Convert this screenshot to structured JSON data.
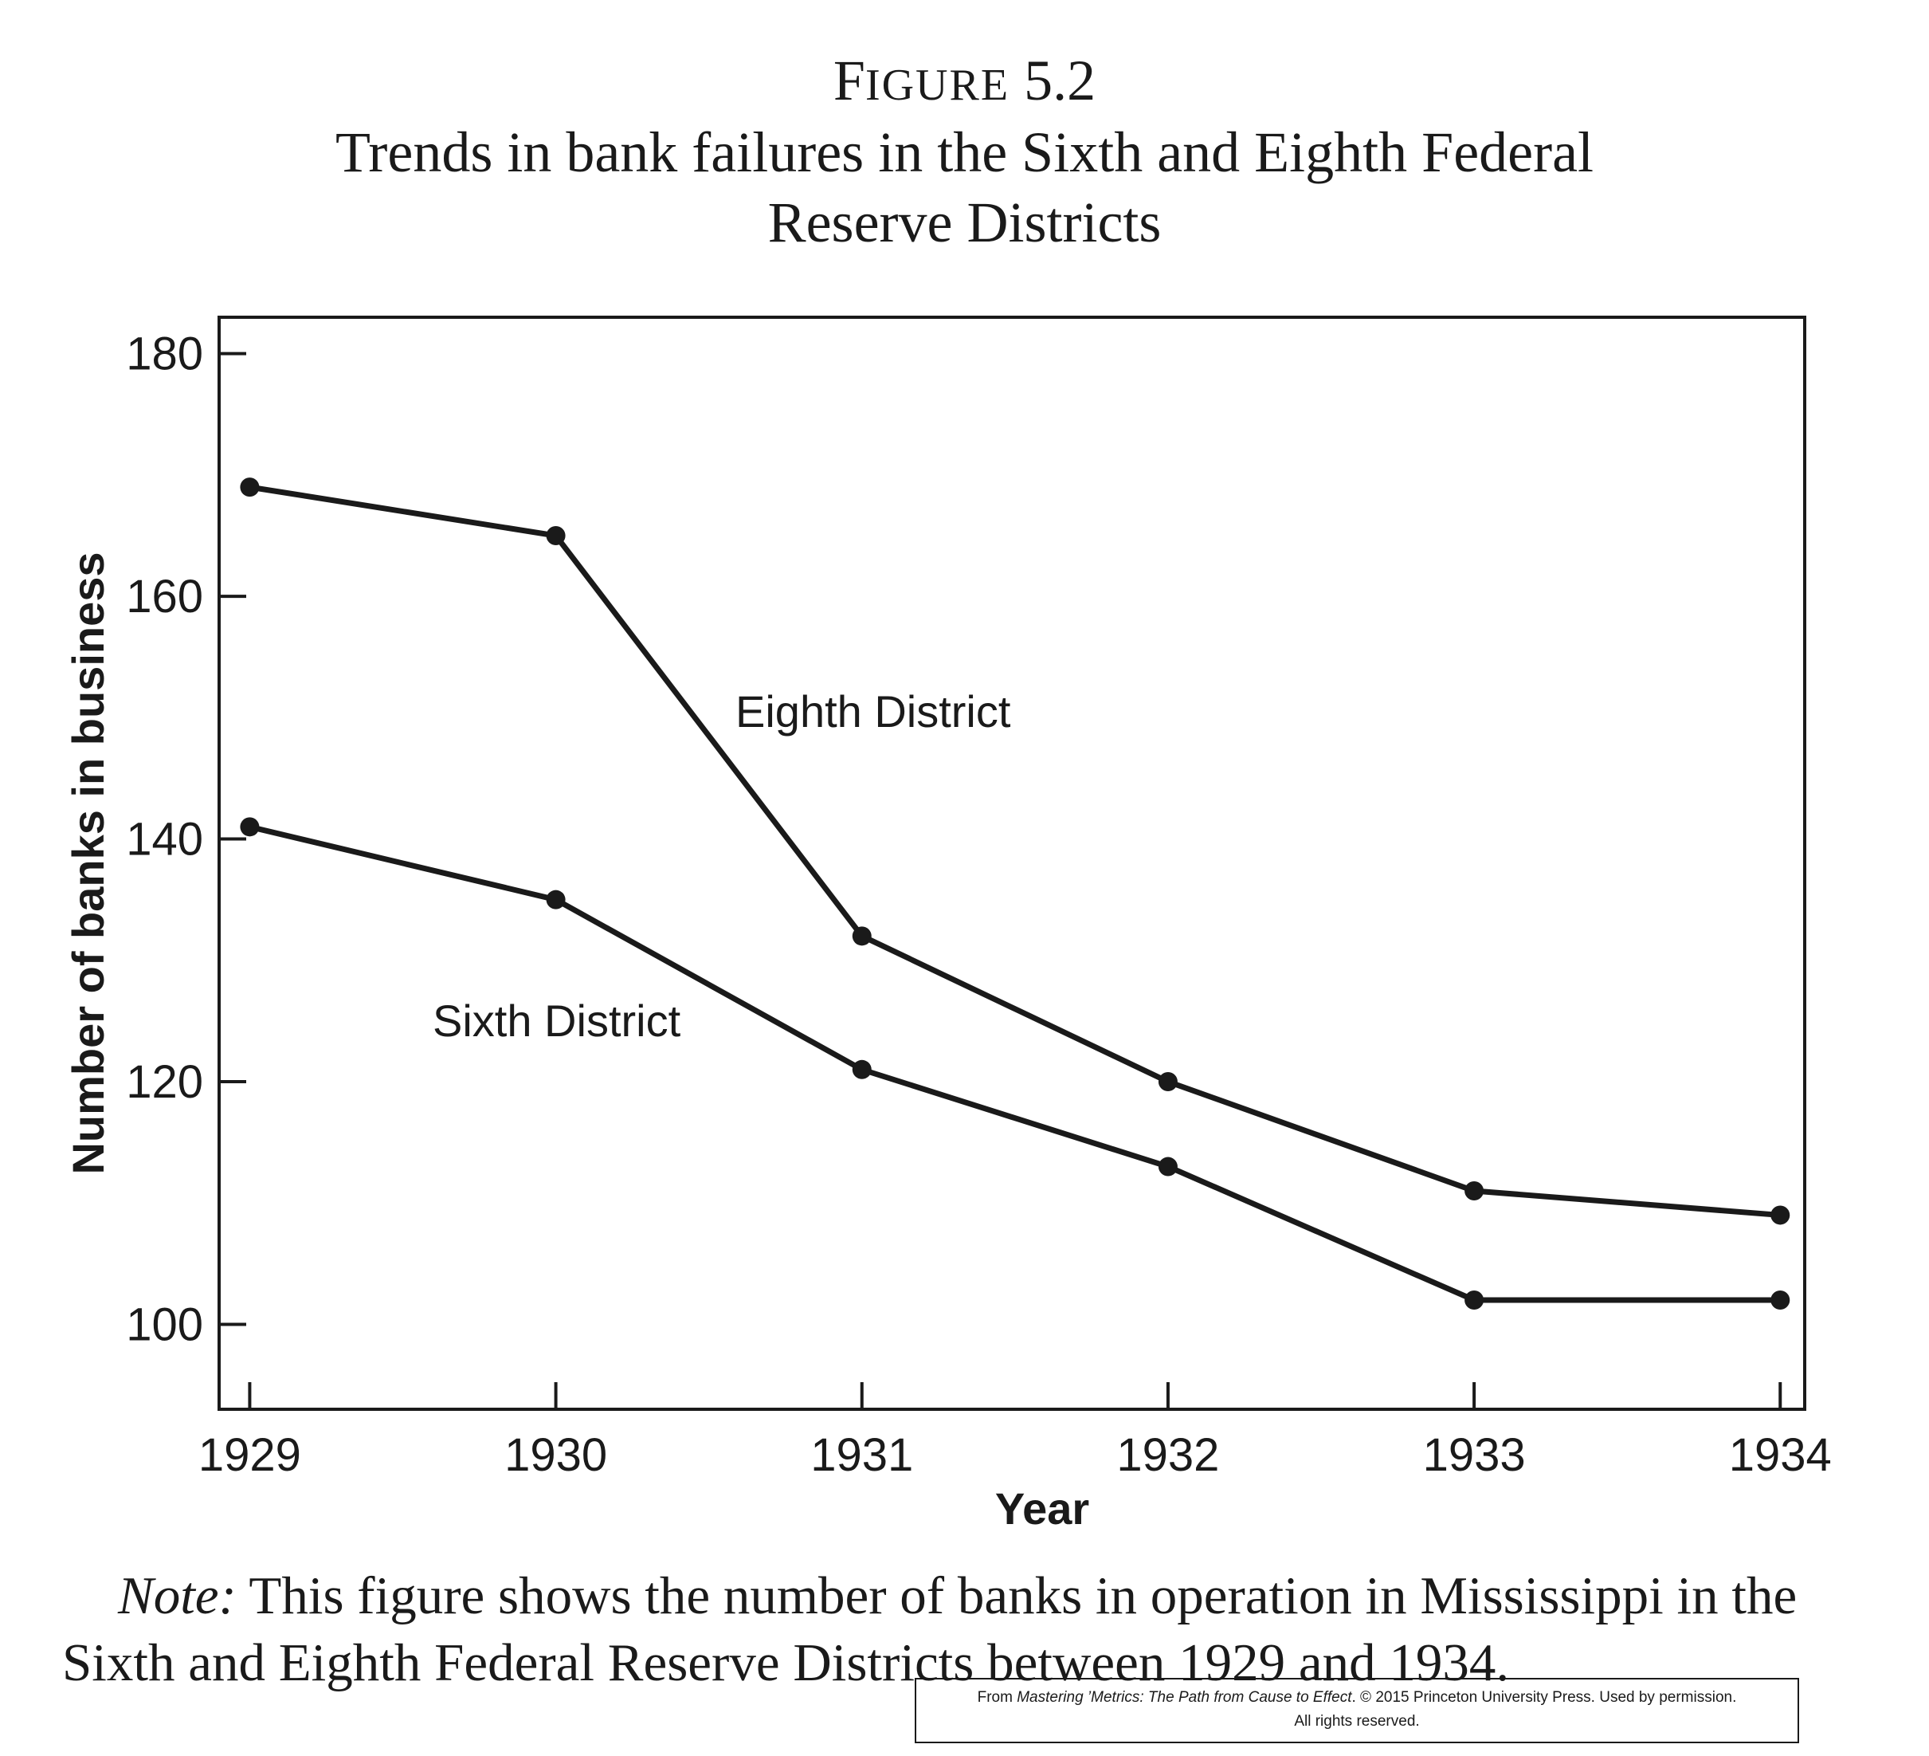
{
  "figure": {
    "label_initial": "F",
    "label_rest": "IGURE",
    "label_number": "5.2",
    "title_line1": "Trends in bank failures in the Sixth and Eighth Federal",
    "title_line2": "Reserve Districts"
  },
  "chart_data": {
    "type": "line",
    "x": [
      1929,
      1930,
      1931,
      1932,
      1933,
      1934
    ],
    "series": [
      {
        "name": "Eighth District",
        "values": [
          169,
          165,
          132,
          120,
          111,
          109
        ]
      },
      {
        "name": "Sixth District",
        "values": [
          141,
          135,
          121,
          113,
          102,
          102
        ]
      }
    ],
    "xlabel": "Year",
    "ylabel": "Number of banks in business",
    "xticks": [
      "1929",
      "1930",
      "1931",
      "1932",
      "1933",
      "1934"
    ],
    "yticks": [
      "100",
      "120",
      "140",
      "160",
      "180"
    ],
    "ylim": [
      93,
      183
    ],
    "xlim": [
      1928.9,
      1934.08
    ],
    "grid": false,
    "legend": "none (series labeled directly on the plot)",
    "line_color": "#1a1a1a"
  },
  "note": {
    "lead": "Note:",
    "text": " This figure shows the number of banks in operation in Mississippi in the Sixth and Eighth Federal Reserve Districts between 1929 and 1934."
  },
  "credit": {
    "prefix": "From ",
    "book": "Mastering ’Metrics: The Path from Cause to Effect",
    "suffix": ". © 2015 Princeton University Press. Used by permission.",
    "line2": "All rights reserved."
  }
}
